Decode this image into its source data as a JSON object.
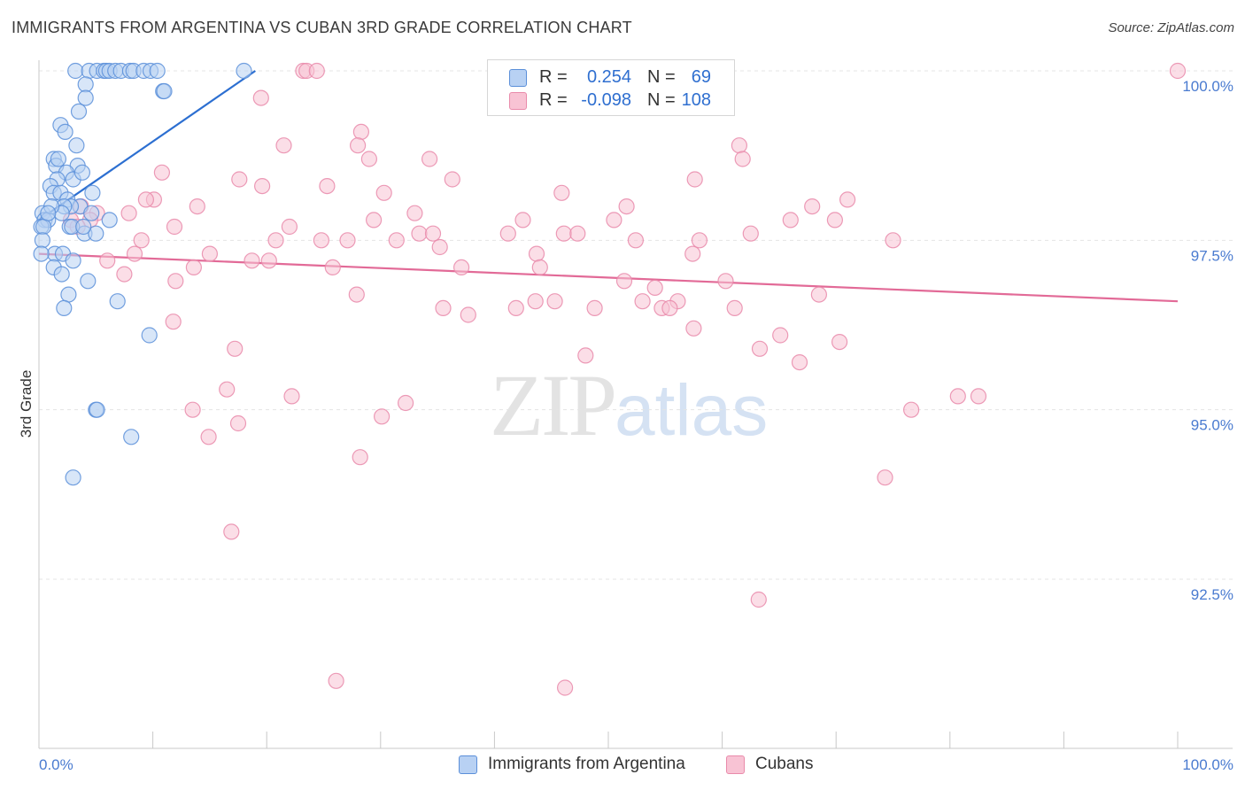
{
  "title": "IMMIGRANTS FROM ARGENTINA VS CUBAN 3RD GRADE CORRELATION CHART",
  "source": "Source: ZipAtlas.com",
  "watermark": {
    "zip": "ZIP",
    "atlas": "atlas"
  },
  "colors": {
    "blue_fill": "#b8d1f3",
    "blue_stroke": "#5b8fd9",
    "blue_line": "#2c6fd1",
    "pink_fill": "#f8c3d4",
    "pink_stroke": "#e98aaa",
    "pink_line": "#e26a97",
    "grid": "#e4e4e4",
    "axis": "#c8c8c8",
    "tick_text": "#4a7bd0"
  },
  "legend": {
    "series": [
      {
        "r_label": "R =",
        "r_value": "0.254",
        "n_label": "N =",
        "n_value": "69"
      },
      {
        "r_label": "R =",
        "r_value": "-0.098",
        "n_label": "N =",
        "n_value": "108"
      }
    ]
  },
  "bottom_legend": {
    "items": [
      "Immigrants from Argentina",
      "Cubans"
    ]
  },
  "chart_data": {
    "type": "scatter",
    "title": "IMMIGRANTS FROM ARGENTINA VS CUBAN 3RD GRADE CORRELATION CHART",
    "xlabel": "",
    "ylabel": "3rd Grade",
    "xlim": [
      0,
      100
    ],
    "ylim": [
      90.2,
      100.3
    ],
    "x_tick_labels": [
      "0.0%",
      "100.0%"
    ],
    "y_ticks": [
      {
        "value": 100.0,
        "label": "100.0%"
      },
      {
        "value": 97.5,
        "label": "97.5%"
      },
      {
        "value": 95.0,
        "label": "95.0%"
      },
      {
        "value": 92.5,
        "label": "92.5%"
      }
    ],
    "x_minor_ticks": [
      0,
      10,
      20,
      30,
      40,
      50,
      60,
      70,
      80,
      90,
      100
    ],
    "grid": true,
    "legend_position": "top-center",
    "series": [
      {
        "name": "Immigrants from Argentina",
        "r": 0.254,
        "n": 69,
        "trend": {
          "x": [
            0.0,
            19.0
          ],
          "y": [
            97.8,
            100.0
          ]
        },
        "points": [
          [
            3.2,
            100.0
          ],
          [
            4.4,
            100.0
          ],
          [
            5.1,
            100.0
          ],
          [
            5.7,
            100.0
          ],
          [
            5.9,
            100.0
          ],
          [
            6.2,
            100.0
          ],
          [
            6.7,
            100.0
          ],
          [
            7.2,
            100.0
          ],
          [
            8.0,
            100.0
          ],
          [
            8.3,
            100.0
          ],
          [
            9.2,
            100.0
          ],
          [
            9.8,
            100.0
          ],
          [
            10.4,
            100.0
          ],
          [
            18.0,
            100.0
          ],
          [
            4.1,
            99.8
          ],
          [
            10.9,
            99.7
          ],
          [
            11.0,
            99.7
          ],
          [
            4.1,
            99.6
          ],
          [
            3.5,
            99.4
          ],
          [
            1.9,
            99.2
          ],
          [
            2.3,
            99.1
          ],
          [
            3.3,
            98.9
          ],
          [
            1.3,
            98.7
          ],
          [
            1.5,
            98.6
          ],
          [
            3.4,
            98.6
          ],
          [
            1.7,
            98.7
          ],
          [
            2.4,
            98.5
          ],
          [
            3.0,
            98.4
          ],
          [
            3.8,
            98.5
          ],
          [
            1.6,
            98.4
          ],
          [
            1.0,
            98.3
          ],
          [
            1.3,
            98.2
          ],
          [
            1.9,
            98.2
          ],
          [
            4.7,
            98.2
          ],
          [
            2.5,
            98.1
          ],
          [
            3.6,
            98.0
          ],
          [
            2.8,
            98.0
          ],
          [
            2.2,
            98.0
          ],
          [
            2.0,
            97.9
          ],
          [
            4.6,
            97.9
          ],
          [
            0.3,
            97.9
          ],
          [
            0.5,
            97.8
          ],
          [
            0.8,
            97.8
          ],
          [
            0.2,
            97.7
          ],
          [
            0.4,
            97.7
          ],
          [
            2.7,
            97.7
          ],
          [
            4.0,
            97.6
          ],
          [
            6.2,
            97.8
          ],
          [
            5.0,
            97.6
          ],
          [
            0.3,
            97.5
          ],
          [
            1.4,
            97.3
          ],
          [
            2.1,
            97.3
          ],
          [
            0.2,
            97.3
          ],
          [
            3.0,
            97.2
          ],
          [
            1.3,
            97.1
          ],
          [
            2.0,
            97.0
          ],
          [
            4.3,
            96.9
          ],
          [
            2.6,
            96.7
          ],
          [
            6.9,
            96.6
          ],
          [
            2.2,
            96.5
          ],
          [
            9.7,
            96.1
          ],
          [
            5.0,
            95.0
          ],
          [
            5.1,
            95.0
          ],
          [
            8.1,
            94.6
          ],
          [
            3.0,
            94.0
          ],
          [
            2.9,
            97.7
          ],
          [
            3.9,
            97.7
          ],
          [
            1.1,
            98.0
          ],
          [
            0.8,
            97.9
          ]
        ]
      },
      {
        "name": "Cubans",
        "r": -0.098,
        "n": 108,
        "trend": {
          "x": [
            0.0,
            100.0
          ],
          "y": [
            97.3,
            96.6
          ]
        },
        "points": [
          [
            23.2,
            100.0
          ],
          [
            23.5,
            100.0
          ],
          [
            24.4,
            100.0
          ],
          [
            100.0,
            100.0
          ],
          [
            19.5,
            99.6
          ],
          [
            28.3,
            99.1
          ],
          [
            28.0,
            98.9
          ],
          [
            21.5,
            98.9
          ],
          [
            29.0,
            98.7
          ],
          [
            34.3,
            98.7
          ],
          [
            61.5,
            98.9
          ],
          [
            61.8,
            98.7
          ],
          [
            10.8,
            98.5
          ],
          [
            17.6,
            98.4
          ],
          [
            19.6,
            98.3
          ],
          [
            25.3,
            98.3
          ],
          [
            36.3,
            98.4
          ],
          [
            45.9,
            98.2
          ],
          [
            57.6,
            98.4
          ],
          [
            30.3,
            98.2
          ],
          [
            10.1,
            98.1
          ],
          [
            9.4,
            98.1
          ],
          [
            13.9,
            98.0
          ],
          [
            51.6,
            98.0
          ],
          [
            67.9,
            98.0
          ],
          [
            71.0,
            98.1
          ],
          [
            7.9,
            97.9
          ],
          [
            3.7,
            98.0
          ],
          [
            5.1,
            97.9
          ],
          [
            33.0,
            97.9
          ],
          [
            42.5,
            97.8
          ],
          [
            50.5,
            97.8
          ],
          [
            66.0,
            97.8
          ],
          [
            69.9,
            97.8
          ],
          [
            2.8,
            97.8
          ],
          [
            4.5,
            97.8
          ],
          [
            11.9,
            97.7
          ],
          [
            22.0,
            97.7
          ],
          [
            29.4,
            97.8
          ],
          [
            33.4,
            97.6
          ],
          [
            34.6,
            97.6
          ],
          [
            41.2,
            97.6
          ],
          [
            46.1,
            97.6
          ],
          [
            47.3,
            97.6
          ],
          [
            62.5,
            97.6
          ],
          [
            3.4,
            97.7
          ],
          [
            9.0,
            97.5
          ],
          [
            20.8,
            97.5
          ],
          [
            24.8,
            97.5
          ],
          [
            27.1,
            97.5
          ],
          [
            31.4,
            97.5
          ],
          [
            52.4,
            97.5
          ],
          [
            58.0,
            97.5
          ],
          [
            75.0,
            97.5
          ],
          [
            35.2,
            97.4
          ],
          [
            43.7,
            97.3
          ],
          [
            57.4,
            97.3
          ],
          [
            15.0,
            97.3
          ],
          [
            8.4,
            97.3
          ],
          [
            6.0,
            97.2
          ],
          [
            18.7,
            97.2
          ],
          [
            20.2,
            97.2
          ],
          [
            13.6,
            97.1
          ],
          [
            25.8,
            97.1
          ],
          [
            37.1,
            97.1
          ],
          [
            44.0,
            97.1
          ],
          [
            60.3,
            96.9
          ],
          [
            7.5,
            97.0
          ],
          [
            12.0,
            96.9
          ],
          [
            51.4,
            96.9
          ],
          [
            45.3,
            96.6
          ],
          [
            43.6,
            96.6
          ],
          [
            53.0,
            96.6
          ],
          [
            56.1,
            96.6
          ],
          [
            11.8,
            96.3
          ],
          [
            27.9,
            96.7
          ],
          [
            35.5,
            96.5
          ],
          [
            41.9,
            96.5
          ],
          [
            48.8,
            96.5
          ],
          [
            54.7,
            96.5
          ],
          [
            55.4,
            96.5
          ],
          [
            68.5,
            96.7
          ],
          [
            61.1,
            96.5
          ],
          [
            54.1,
            96.8
          ],
          [
            37.7,
            96.4
          ],
          [
            57.5,
            96.2
          ],
          [
            65.1,
            96.1
          ],
          [
            70.3,
            96.0
          ],
          [
            48.0,
            95.8
          ],
          [
            63.3,
            95.9
          ],
          [
            17.2,
            95.9
          ],
          [
            66.8,
            95.7
          ],
          [
            80.7,
            95.2
          ],
          [
            82.5,
            95.2
          ],
          [
            16.5,
            95.3
          ],
          [
            22.2,
            95.2
          ],
          [
            30.1,
            94.9
          ],
          [
            32.2,
            95.1
          ],
          [
            13.5,
            95.0
          ],
          [
            17.5,
            94.8
          ],
          [
            14.9,
            94.6
          ],
          [
            74.3,
            94.0
          ],
          [
            28.2,
            94.3
          ],
          [
            16.9,
            93.2
          ],
          [
            63.2,
            92.2
          ],
          [
            26.1,
            91.0
          ],
          [
            46.2,
            90.9
          ],
          [
            76.6,
            95.0
          ]
        ]
      }
    ]
  }
}
